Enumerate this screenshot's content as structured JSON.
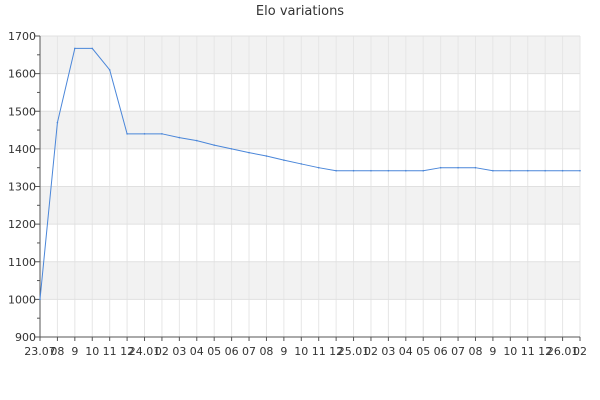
{
  "chart_data": {
    "type": "line",
    "title": "Elo variations",
    "xlabel": "",
    "ylabel": "",
    "ylim": [
      900,
      1700
    ],
    "y_ticks": [
      900,
      1000,
      1100,
      1200,
      1300,
      1400,
      1500,
      1600,
      1700
    ],
    "x_tick_labels": [
      "23.07",
      "08",
      "9",
      "10",
      "11",
      "12",
      "24.01",
      "02",
      "03",
      "04",
      "05",
      "06",
      "07",
      "08",
      "9",
      "10",
      "11",
      "12",
      "25.01",
      "02",
      "03",
      "04",
      "05",
      "06",
      "07",
      "08",
      "9",
      "10",
      "11",
      "12",
      "26.01",
      "02"
    ],
    "grid": true,
    "series": [
      {
        "values": [
          1000,
          1470,
          1667,
          1667,
          1610,
          1440,
          1440,
          1440,
          1430,
          1422,
          1410,
          1400,
          1390,
          1381,
          1370,
          1360,
          1350,
          1342,
          1342,
          1342,
          1342,
          1342,
          1342,
          1350,
          1350,
          1350,
          1342,
          1342,
          1342,
          1342,
          1342,
          1342
        ],
        "color": "#4a86d9"
      }
    ]
  }
}
